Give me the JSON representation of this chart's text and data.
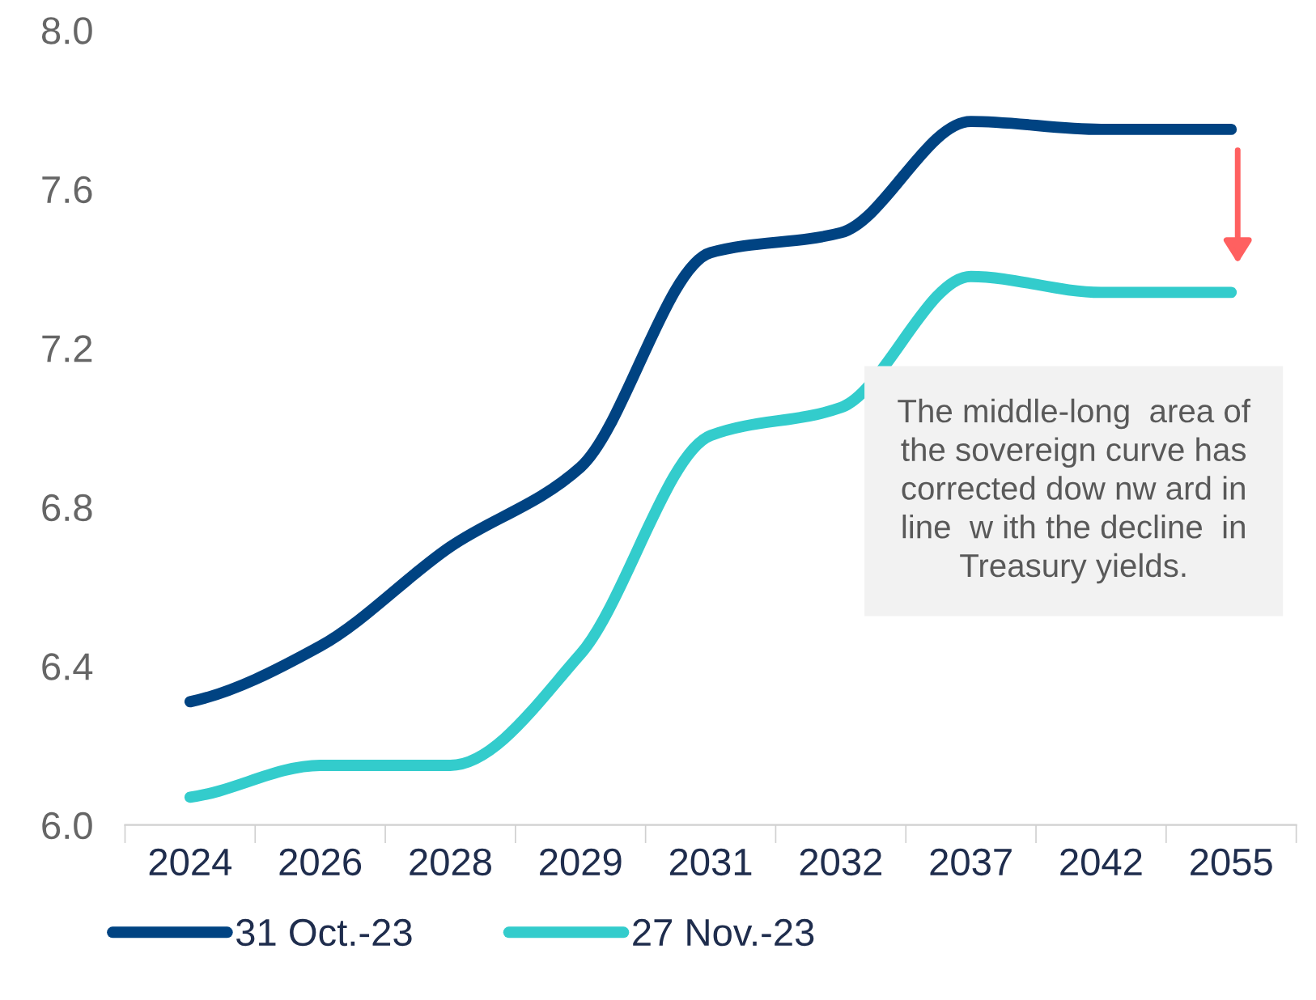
{
  "chart_data": {
    "type": "line",
    "categories": [
      "2024",
      "2026",
      "2028",
      "2029",
      "2031",
      "2032",
      "2037",
      "2042",
      "2055"
    ],
    "series": [
      {
        "name": "31 Oct.-23",
        "color": "#004382",
        "values": [
          6.31,
          6.45,
          6.7,
          6.9,
          7.44,
          7.49,
          7.77,
          7.75,
          7.75
        ]
      },
      {
        "name": "27 Nov.-23",
        "color": "#33cccc",
        "values": [
          6.07,
          6.15,
          6.15,
          6.43,
          6.98,
          7.05,
          7.38,
          7.34,
          7.34
        ]
      }
    ],
    "ylim": [
      6.0,
      8.0
    ],
    "yticks": [
      {
        "value": 6.0,
        "label": "6.0"
      },
      {
        "value": 6.4,
        "label": "6.4"
      },
      {
        "value": 6.8,
        "label": "6.8"
      },
      {
        "value": 7.2,
        "label": "7.2"
      },
      {
        "value": 7.6,
        "label": "7.6"
      },
      {
        "value": 8.0,
        "label": "8.0"
      }
    ],
    "annotations": [
      "The middle-long  area of\nthe sovereign curve has\ncorrected dow nw ard in\nline  w ith the decline  in\nTreasury yields."
    ],
    "grid": false,
    "legend": "bottom",
    "marker": "none",
    "line_style": "solid"
  }
}
